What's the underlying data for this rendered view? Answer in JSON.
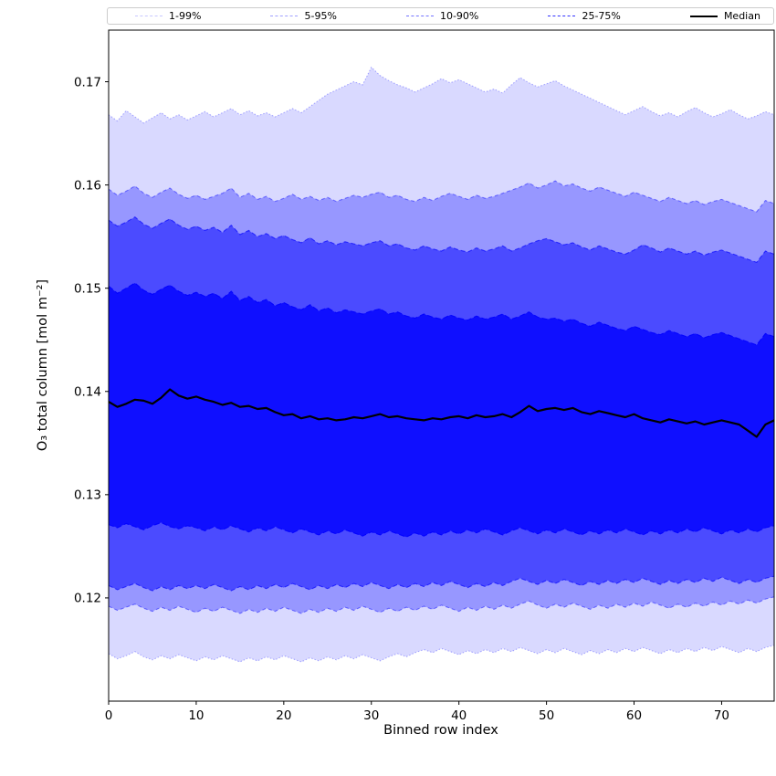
{
  "chart_data": {
    "type": "area",
    "title": "",
    "background": "#ffffff",
    "xlabel": "Binned row index",
    "ylabel": "O₃ total column [mol m⁻²]",
    "xlim": [
      0,
      76
    ],
    "ylim": [
      0.11,
      0.175
    ],
    "xticks": [
      0,
      10,
      20,
      30,
      40,
      50,
      60,
      70
    ],
    "yticks": [
      0.12,
      0.13,
      0.14,
      0.15,
      0.16,
      0.17
    ],
    "grid": false,
    "legend_position": "top-outside-expanded",
    "band_color": "#0000ff",
    "median_color": "#000000",
    "legend_entries": [
      "1-99%",
      "5-95%",
      "10-90%",
      "25-75%",
      "Median"
    ],
    "bands": [
      {
        "label": "1-99%",
        "lower_key": "p01",
        "upper_key": "p99",
        "fill_alpha": 0.15,
        "edge_alpha": 0.3,
        "dash": "1.5 2"
      },
      {
        "label": "5-95%",
        "lower_key": "p05",
        "upper_key": "p95",
        "fill_alpha": 0.3,
        "edge_alpha": 0.45,
        "dash": "4 3"
      },
      {
        "label": "10-90%",
        "lower_key": "p10",
        "upper_key": "p90",
        "fill_alpha": 0.5,
        "edge_alpha": 0.65,
        "dash": "5 3"
      },
      {
        "label": "25-75%",
        "lower_key": "p25",
        "upper_key": "p75",
        "fill_alpha": 0.8,
        "edge_alpha": 0.92,
        "dash": "6 3"
      }
    ],
    "x": [
      0,
      1,
      2,
      3,
      4,
      5,
      6,
      7,
      8,
      9,
      10,
      11,
      12,
      13,
      14,
      15,
      16,
      17,
      18,
      19,
      20,
      21,
      22,
      23,
      24,
      25,
      26,
      27,
      28,
      29,
      30,
      31,
      32,
      33,
      34,
      35,
      36,
      37,
      38,
      39,
      40,
      41,
      42,
      43,
      44,
      45,
      46,
      47,
      48,
      49,
      50,
      51,
      52,
      53,
      54,
      55,
      56,
      57,
      58,
      59,
      60,
      61,
      62,
      63,
      64,
      65,
      66,
      67,
      68,
      69,
      70,
      71,
      72,
      73,
      74,
      75,
      76
    ],
    "percentiles": {
      "p01": [
        0.1146,
        0.1141,
        0.1144,
        0.1148,
        0.1143,
        0.114,
        0.1144,
        0.1141,
        0.1145,
        0.1142,
        0.1139,
        0.1143,
        0.114,
        0.1144,
        0.1141,
        0.1138,
        0.1142,
        0.1139,
        0.1143,
        0.114,
        0.1144,
        0.1141,
        0.1138,
        0.1142,
        0.1139,
        0.1143,
        0.114,
        0.1144,
        0.1141,
        0.1145,
        0.1142,
        0.1139,
        0.1143,
        0.1146,
        0.1143,
        0.1147,
        0.115,
        0.1147,
        0.1151,
        0.1148,
        0.1145,
        0.1149,
        0.1146,
        0.115,
        0.1147,
        0.1151,
        0.1148,
        0.1152,
        0.1149,
        0.1146,
        0.115,
        0.1147,
        0.1151,
        0.1148,
        0.1145,
        0.1149,
        0.1146,
        0.115,
        0.1147,
        0.1151,
        0.1148,
        0.1152,
        0.1149,
        0.1146,
        0.115,
        0.1147,
        0.1151,
        0.1148,
        0.1152,
        0.1149,
        0.1153,
        0.115,
        0.1147,
        0.1151,
        0.1148,
        0.1152,
        0.1154
      ],
      "p05": [
        0.1192,
        0.1188,
        0.1191,
        0.1194,
        0.119,
        0.1187,
        0.1191,
        0.1188,
        0.1192,
        0.1189,
        0.1186,
        0.119,
        0.1187,
        0.1191,
        0.1188,
        0.1185,
        0.1189,
        0.1186,
        0.119,
        0.1187,
        0.1191,
        0.1188,
        0.1185,
        0.1189,
        0.1186,
        0.119,
        0.1187,
        0.1191,
        0.1188,
        0.1192,
        0.1189,
        0.1186,
        0.119,
        0.1187,
        0.1191,
        0.1188,
        0.1192,
        0.1189,
        0.1193,
        0.119,
        0.1187,
        0.1191,
        0.1188,
        0.1192,
        0.1189,
        0.1193,
        0.119,
        0.1194,
        0.1197,
        0.1193,
        0.119,
        0.1194,
        0.1191,
        0.1195,
        0.1192,
        0.1189,
        0.1193,
        0.119,
        0.1194,
        0.1191,
        0.1195,
        0.1192,
        0.1196,
        0.1193,
        0.119,
        0.1194,
        0.1191,
        0.1195,
        0.1192,
        0.1196,
        0.1193,
        0.1197,
        0.1194,
        0.1198,
        0.1195,
        0.1199,
        0.1201
      ],
      "p10": [
        0.1212,
        0.1208,
        0.1211,
        0.1214,
        0.121,
        0.1207,
        0.1211,
        0.1208,
        0.1212,
        0.1209,
        0.1212,
        0.1209,
        0.1213,
        0.121,
        0.1207,
        0.1211,
        0.1208,
        0.1212,
        0.1209,
        0.1213,
        0.121,
        0.1214,
        0.1211,
        0.1208,
        0.1212,
        0.1209,
        0.1213,
        0.121,
        0.1214,
        0.1211,
        0.1215,
        0.1212,
        0.1209,
        0.1213,
        0.121,
        0.1214,
        0.1211,
        0.1215,
        0.1212,
        0.1216,
        0.1213,
        0.121,
        0.1214,
        0.1211,
        0.1215,
        0.1212,
        0.1216,
        0.1219,
        0.1216,
        0.1213,
        0.1217,
        0.1214,
        0.1218,
        0.1215,
        0.1212,
        0.1216,
        0.1213,
        0.1217,
        0.1214,
        0.1218,
        0.1215,
        0.1219,
        0.1216,
        0.1213,
        0.1217,
        0.1214,
        0.1218,
        0.1215,
        0.1219,
        0.1216,
        0.122,
        0.1217,
        0.1214,
        0.1218,
        0.1215,
        0.1219,
        0.1221
      ],
      "p25": [
        0.1271,
        0.1268,
        0.1272,
        0.1269,
        0.1266,
        0.127,
        0.1273,
        0.1269,
        0.1267,
        0.127,
        0.1268,
        0.1265,
        0.1269,
        0.1266,
        0.127,
        0.1267,
        0.1264,
        0.1268,
        0.1265,
        0.1269,
        0.1266,
        0.1263,
        0.1267,
        0.1264,
        0.1261,
        0.1265,
        0.1262,
        0.1266,
        0.1263,
        0.126,
        0.1264,
        0.1261,
        0.1265,
        0.1262,
        0.1259,
        0.1263,
        0.126,
        0.1264,
        0.1261,
        0.1265,
        0.1262,
        0.1266,
        0.1263,
        0.1267,
        0.1264,
        0.1261,
        0.1265,
        0.1268,
        0.1265,
        0.1262,
        0.1266,
        0.1263,
        0.1267,
        0.1264,
        0.1261,
        0.1265,
        0.1262,
        0.1266,
        0.1263,
        0.1267,
        0.1264,
        0.1261,
        0.1265,
        0.1262,
        0.1266,
        0.1263,
        0.1267,
        0.1264,
        0.1268,
        0.1265,
        0.1262,
        0.1266,
        0.1263,
        0.1267,
        0.1264,
        0.1268,
        0.127
      ],
      "median": [
        0.139,
        0.1385,
        0.1388,
        0.1392,
        0.1391,
        0.1388,
        0.1394,
        0.1402,
        0.1396,
        0.1393,
        0.1395,
        0.1392,
        0.139,
        0.1387,
        0.1389,
        0.1385,
        0.1386,
        0.1383,
        0.1384,
        0.138,
        0.1377,
        0.1378,
        0.1374,
        0.1376,
        0.1373,
        0.1374,
        0.1372,
        0.1373,
        0.1375,
        0.1374,
        0.1376,
        0.1378,
        0.1375,
        0.1376,
        0.1374,
        0.1373,
        0.1372,
        0.1374,
        0.1373,
        0.1375,
        0.1376,
        0.1374,
        0.1377,
        0.1375,
        0.1376,
        0.1378,
        0.1375,
        0.138,
        0.1386,
        0.1381,
        0.1383,
        0.1384,
        0.1382,
        0.1384,
        0.138,
        0.1378,
        0.1381,
        0.1379,
        0.1377,
        0.1375,
        0.1378,
        0.1374,
        0.1372,
        0.137,
        0.1373,
        0.1371,
        0.1369,
        0.1371,
        0.1368,
        0.137,
        0.1372,
        0.137,
        0.1368,
        0.1362,
        0.1356,
        0.1368,
        0.1372
      ],
      "p75": [
        0.1502,
        0.1495,
        0.15,
        0.1505,
        0.1498,
        0.1494,
        0.1499,
        0.1503,
        0.1497,
        0.1493,
        0.1496,
        0.1492,
        0.1495,
        0.149,
        0.1497,
        0.1488,
        0.1492,
        0.1486,
        0.1489,
        0.1483,
        0.1486,
        0.1482,
        0.1479,
        0.1484,
        0.1478,
        0.1481,
        0.1476,
        0.1479,
        0.1477,
        0.1475,
        0.1478,
        0.148,
        0.1475,
        0.1477,
        0.1473,
        0.1471,
        0.1475,
        0.1472,
        0.147,
        0.1474,
        0.1471,
        0.1469,
        0.1473,
        0.147,
        0.1472,
        0.1475,
        0.147,
        0.1473,
        0.1477,
        0.1472,
        0.147,
        0.1471,
        0.1468,
        0.147,
        0.1466,
        0.1463,
        0.1467,
        0.1464,
        0.1461,
        0.1459,
        0.1463,
        0.146,
        0.1457,
        0.1455,
        0.1459,
        0.1456,
        0.1453,
        0.1456,
        0.1452,
        0.1455,
        0.1457,
        0.1454,
        0.1451,
        0.1448,
        0.1445,
        0.1456,
        0.1453
      ],
      "p90": [
        0.1566,
        0.156,
        0.1564,
        0.1569,
        0.1562,
        0.1558,
        0.1563,
        0.1567,
        0.1561,
        0.1557,
        0.156,
        0.1556,
        0.1559,
        0.1554,
        0.1561,
        0.1552,
        0.1556,
        0.155,
        0.1553,
        0.1548,
        0.1551,
        0.1547,
        0.1544,
        0.1549,
        0.1543,
        0.1546,
        0.1542,
        0.1545,
        0.1543,
        0.1541,
        0.1544,
        0.1546,
        0.1541,
        0.1543,
        0.1539,
        0.1537,
        0.1541,
        0.1538,
        0.1536,
        0.154,
        0.1537,
        0.1535,
        0.1539,
        0.1536,
        0.1538,
        0.1541,
        0.1536,
        0.1539,
        0.1543,
        0.1546,
        0.1548,
        0.1545,
        0.1542,
        0.1544,
        0.154,
        0.1537,
        0.1541,
        0.1538,
        0.1535,
        0.1533,
        0.1537,
        0.1542,
        0.1539,
        0.1535,
        0.1539,
        0.1536,
        0.1533,
        0.1536,
        0.1532,
        0.1535,
        0.1537,
        0.1534,
        0.1531,
        0.1528,
        0.1525,
        0.1536,
        0.1533
      ],
      "p95": [
        0.1596,
        0.159,
        0.1594,
        0.1599,
        0.1592,
        0.1588,
        0.1593,
        0.1597,
        0.1591,
        0.1587,
        0.159,
        0.1586,
        0.1589,
        0.1592,
        0.1597,
        0.1588,
        0.1592,
        0.1586,
        0.1589,
        0.1584,
        0.1587,
        0.1591,
        0.1586,
        0.1589,
        0.1585,
        0.1588,
        0.1584,
        0.1587,
        0.159,
        0.1588,
        0.1591,
        0.1593,
        0.1588,
        0.159,
        0.1586,
        0.1584,
        0.1588,
        0.1585,
        0.1589,
        0.1592,
        0.1589,
        0.1586,
        0.159,
        0.1587,
        0.1589,
        0.1592,
        0.1595,
        0.1598,
        0.1602,
        0.1597,
        0.16,
        0.1604,
        0.1599,
        0.1601,
        0.1597,
        0.1594,
        0.1598,
        0.1595,
        0.1592,
        0.1589,
        0.1593,
        0.159,
        0.1587,
        0.1584,
        0.1588,
        0.1585,
        0.1582,
        0.1585,
        0.1581,
        0.1584,
        0.1586,
        0.1583,
        0.158,
        0.1577,
        0.1574,
        0.1585,
        0.1582
      ],
      "p99": [
        0.1668,
        0.1662,
        0.1672,
        0.1666,
        0.166,
        0.1665,
        0.167,
        0.1664,
        0.1668,
        0.1663,
        0.1667,
        0.1671,
        0.1666,
        0.167,
        0.1674,
        0.1668,
        0.1672,
        0.1667,
        0.167,
        0.1666,
        0.167,
        0.1674,
        0.167,
        0.1676,
        0.1682,
        0.1688,
        0.1692,
        0.1696,
        0.17,
        0.1697,
        0.1714,
        0.1706,
        0.1701,
        0.1697,
        0.1694,
        0.169,
        0.1694,
        0.1698,
        0.1703,
        0.1699,
        0.1702,
        0.1698,
        0.1694,
        0.169,
        0.1693,
        0.1689,
        0.1697,
        0.1704,
        0.1699,
        0.1695,
        0.1698,
        0.1701,
        0.1696,
        0.1692,
        0.1688,
        0.1684,
        0.168,
        0.1676,
        0.1672,
        0.1668,
        0.1672,
        0.1676,
        0.1671,
        0.1667,
        0.167,
        0.1666,
        0.1671,
        0.1675,
        0.167,
        0.1666,
        0.1669,
        0.1673,
        0.1668,
        0.1664,
        0.1667,
        0.1671,
        0.1668
      ]
    }
  }
}
